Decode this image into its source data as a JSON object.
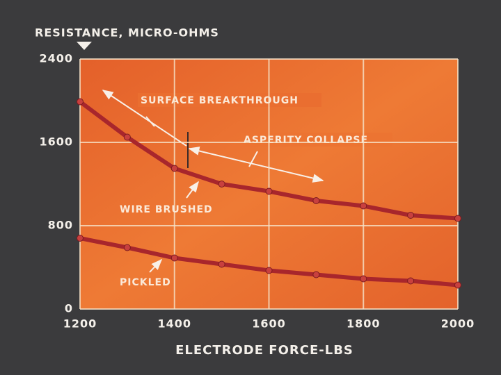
{
  "chart_data": {
    "type": "line",
    "title": "RESISTANCE, MICRO-OHMS",
    "x_label": "ELECTRODE FORCE-LBS",
    "x": [
      1200,
      1300,
      1400,
      1500,
      1600,
      1700,
      1800,
      1900,
      2000
    ],
    "series": [
      {
        "name": "WIRE BRUSHED",
        "color": "#a8262c",
        "values": [
          1990,
          1650,
          1350,
          1200,
          1130,
          1040,
          990,
          900,
          870
        ]
      },
      {
        "name": "PICKLED",
        "color": "#a8262c",
        "values": [
          680,
          590,
          490,
          430,
          370,
          330,
          290,
          270,
          230
        ]
      }
    ],
    "annotations": [
      "SURFACE BREAKTHROUGH",
      "ASPERITY COLLAPSE"
    ],
    "xlim": [
      1200,
      2000
    ],
    "xticks": [
      1200,
      1400,
      1600,
      1800,
      2000
    ],
    "ylim": [
      0,
      2400
    ],
    "yticks": [
      0,
      800,
      1600,
      2400
    ],
    "grid": true
  }
}
